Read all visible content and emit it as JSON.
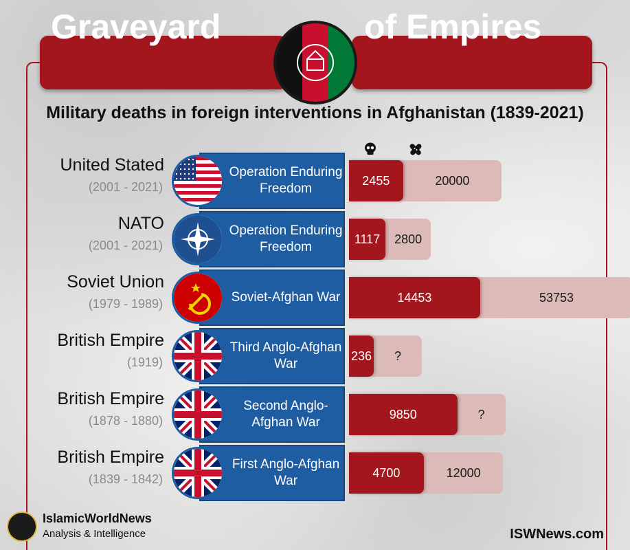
{
  "header": {
    "title_left": "Graveyard",
    "title_right": "of Empires",
    "subtitle": "Military deaths in foreign interventions in Afghanistan (1839-2021)"
  },
  "legend": {
    "deaths_icon": "skull-icon",
    "wounded_icon": "bandage-icon"
  },
  "colors": {
    "banner_red": "#a3161d",
    "deaths_bar": "#a3161d",
    "wounded_bar": "#dbbab7",
    "operation_blue": "#1f5da3"
  },
  "rows": [
    {
      "country": "United Stated",
      "years": "(2001 - 2021)",
      "operation": "Operation Enduring Freedom",
      "flag": "usa-flag",
      "deaths_label": "2455",
      "wounded_label": "20000"
    },
    {
      "country": "NATO",
      "years": "(2001 - 2021)",
      "operation": "Operation Enduring Freedom",
      "flag": "nato-flag",
      "deaths_label": "1117",
      "wounded_label": "2800"
    },
    {
      "country": "Soviet Union",
      "years": "(1979 - 1989)",
      "operation": "Soviet-Afghan War",
      "flag": "ussr-flag",
      "deaths_label": "14453",
      "wounded_label": "53753"
    },
    {
      "country": "British Empire",
      "years": "(1919)",
      "operation": "Third Anglo-Afghan War",
      "flag": "uk-flag",
      "deaths_label": "236",
      "wounded_label": "?"
    },
    {
      "country": "British Empire",
      "years": "(1878 - 1880)",
      "operation": "Second Anglo-Afghan War",
      "flag": "uk-flag",
      "deaths_label": "9850",
      "wounded_label": "?"
    },
    {
      "country": "British Empire",
      "years": "(1839 - 1842)",
      "operation": "First Anglo-Afghan War",
      "flag": "uk-flag",
      "deaths_label": "4700",
      "wounded_label": "12000"
    }
  ],
  "chart_data": {
    "type": "bar",
    "title": "Military deaths in foreign interventions in Afghanistan (1839-2021)",
    "categories": [
      "United Stated (2001 - 2021)",
      "NATO (2001 - 2021)",
      "Soviet Union (1979 - 1989)",
      "British Empire (1919)",
      "British Empire (1878 - 1880)",
      "British Empire (1839 - 1842)"
    ],
    "series": [
      {
        "values": [
          2455,
          1117,
          14453,
          236,
          9850,
          4700
        ]
      },
      {
        "values": [
          20000,
          2800,
          53753,
          null,
          null,
          12000
        ]
      }
    ]
  },
  "footer": {
    "brand": "IslamicWorldNews",
    "tagline": "Analysis & Intelligence",
    "url": "ISWNews.com"
  }
}
